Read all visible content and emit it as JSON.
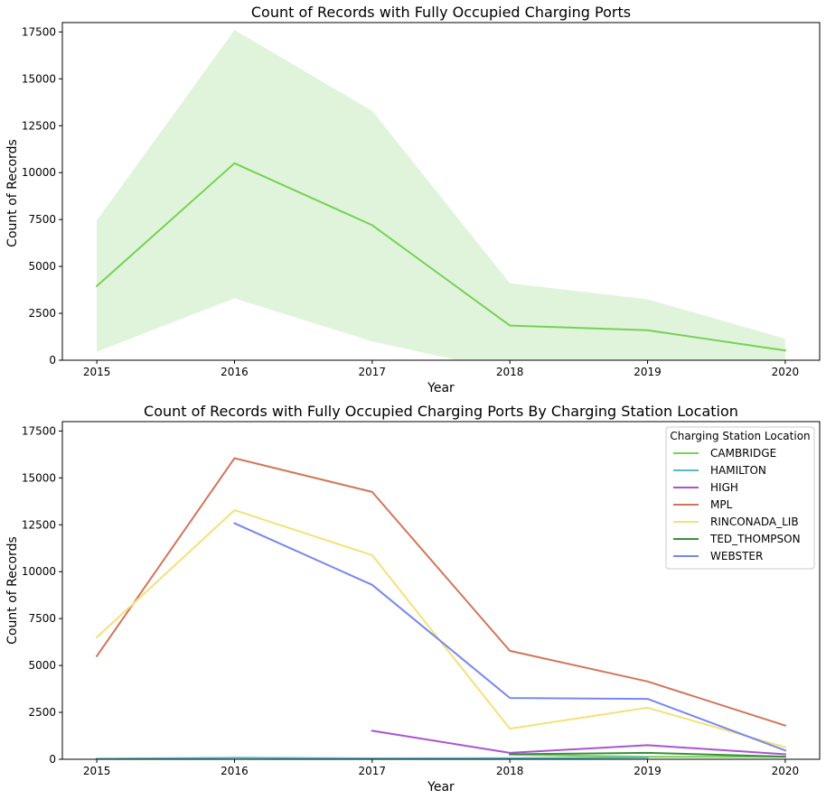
{
  "chart_data": [
    {
      "type": "line",
      "title": "Count of Records with Fully Occupied Charging Ports",
      "xlabel": "Year",
      "ylabel": "Count of Records",
      "x": [
        2015,
        2016,
        2017,
        2018,
        2019,
        2020
      ],
      "xticks": [
        "2015",
        "2016",
        "2017",
        "2018",
        "2019",
        "2020"
      ],
      "yticks": [
        0,
        2500,
        5000,
        7500,
        10000,
        12500,
        15000,
        17500
      ],
      "xlim": [
        2014.75,
        2020.25
      ],
      "ylim": [
        0,
        18000
      ],
      "grid": false,
      "series": [
        {
          "color": "#77d155",
          "band_color": "#e0f4dc",
          "values": [
            3950,
            10500,
            7200,
            1850,
            1600,
            520
          ],
          "ci_upper": [
            7450,
            17600,
            13300,
            4100,
            3250,
            1150
          ],
          "ci_lower": [
            450,
            3300,
            1000,
            -600,
            -100,
            -100
          ]
        }
      ]
    },
    {
      "type": "line",
      "title": "Count of Records with Fully Occupied Charging Ports By Charging Station Location",
      "xlabel": "Year",
      "ylabel": "Count of Records",
      "x": [
        2015,
        2016,
        2017,
        2018,
        2019,
        2020
      ],
      "xticks": [
        "2015",
        "2016",
        "2017",
        "2018",
        "2019",
        "2020"
      ],
      "yticks": [
        0,
        2500,
        5000,
        7500,
        10000,
        12500,
        15000,
        17500
      ],
      "xlim": [
        2014.75,
        2020.25
      ],
      "ylim": [
        0,
        18000
      ],
      "grid": false,
      "legend": {
        "title": "Charging Station Location",
        "placement": "top-right"
      },
      "series": [
        {
          "name": "CAMBRIDGE",
          "color": "#77d155",
          "values": [
            null,
            null,
            null,
            250,
            130,
            130
          ]
        },
        {
          "name": "HAMILTON",
          "color": "#5ab9c4",
          "values": [
            30,
            80,
            50,
            60,
            90,
            null
          ]
        },
        {
          "name": "HIGH",
          "color": "#a955d1",
          "values": [
            null,
            null,
            1520,
            340,
            750,
            270
          ]
        },
        {
          "name": "MPL",
          "color": "#d1755a",
          "values": [
            5500,
            16050,
            14250,
            5780,
            4150,
            1800
          ]
        },
        {
          "name": "RINCONADA_LIB",
          "color": "#f5e07a",
          "values": [
            6500,
            13280,
            10880,
            1630,
            2750,
            650
          ]
        },
        {
          "name": "TED_THOMPSON",
          "color": "#3b8f3b",
          "values": [
            null,
            null,
            null,
            270,
            340,
            140
          ]
        },
        {
          "name": "WEBSTER",
          "color": "#7788ee",
          "values": [
            null,
            12580,
            9300,
            3270,
            3220,
            470
          ]
        }
      ]
    }
  ]
}
